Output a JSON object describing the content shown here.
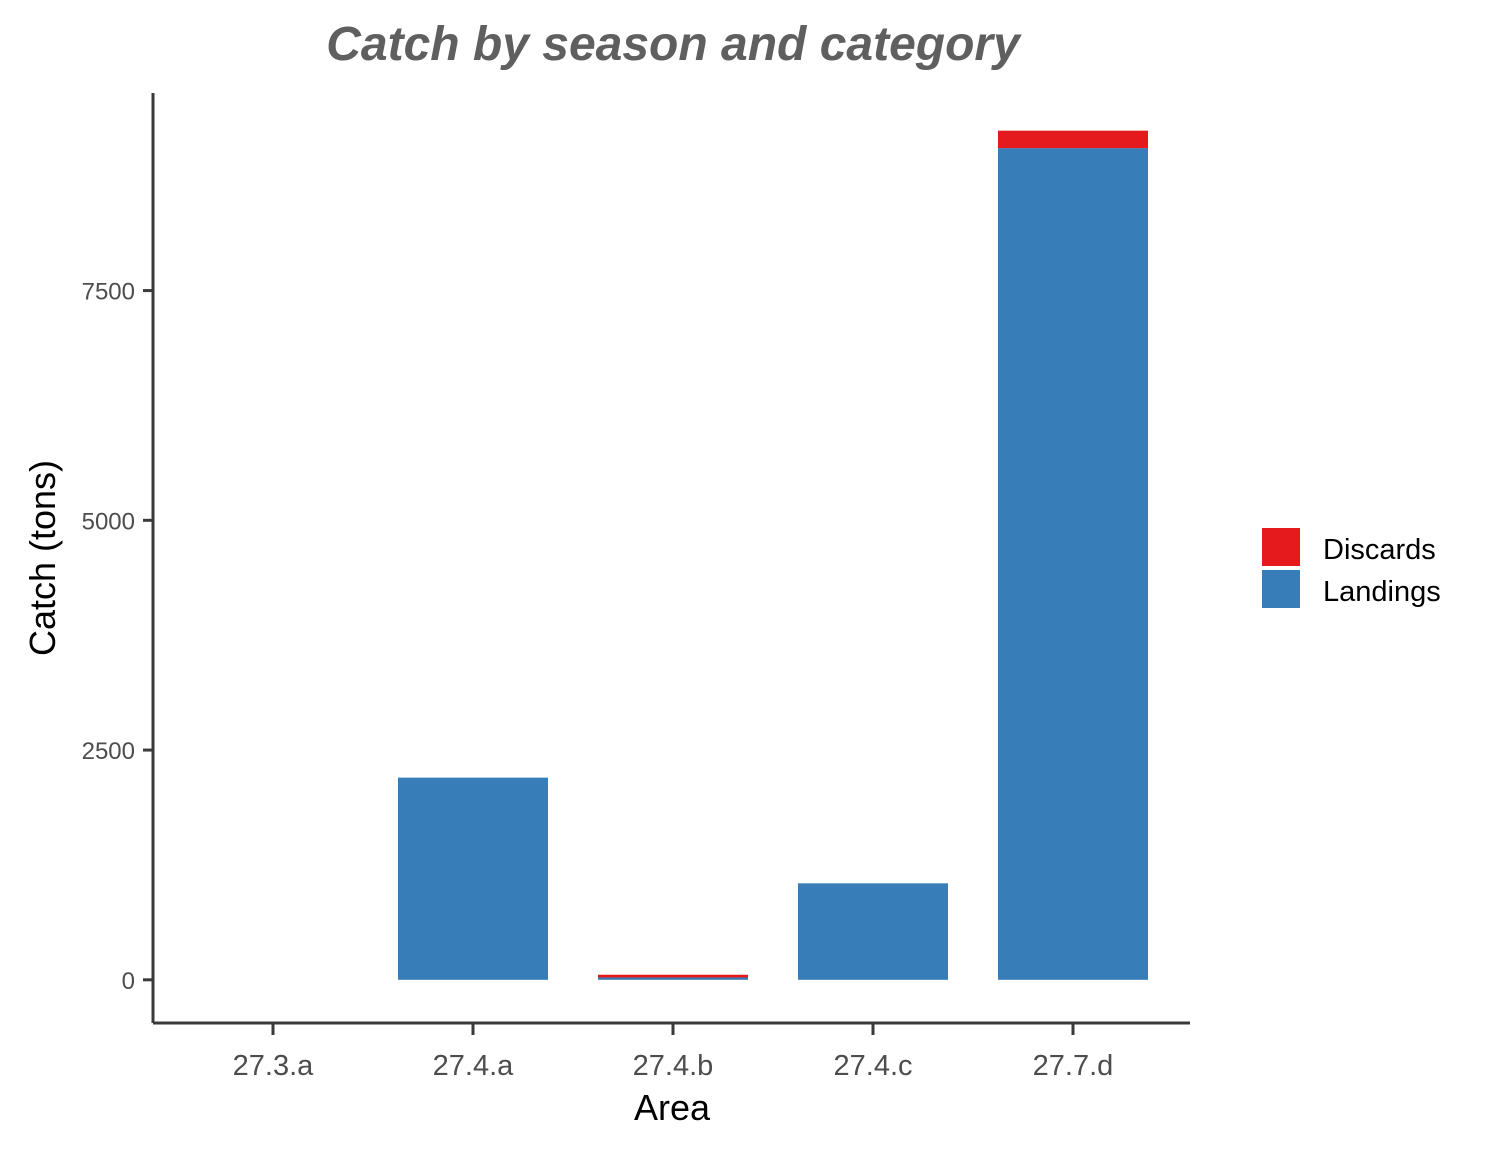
{
  "chart_data": {
    "type": "bar",
    "stacked": true,
    "title": "Catch by season and category",
    "xlabel": "Area",
    "ylabel": "Catch (tons)",
    "categories": [
      "27.3.a",
      "27.4.a",
      "27.4.b",
      "27.4.c",
      "27.7.d"
    ],
    "series": [
      {
        "name": "Landings",
        "color": "#377eb8",
        "values": [
          0,
          2200,
          25,
          1050,
          9050
        ]
      },
      {
        "name": "Discards",
        "color": "#e41a1c",
        "values": [
          0,
          0,
          30,
          0,
          190
        ]
      }
    ],
    "ylim": [
      -470,
      9650
    ],
    "yticks": [
      0,
      2500,
      5000,
      7500
    ],
    "grid": false,
    "legend_position": "right"
  }
}
